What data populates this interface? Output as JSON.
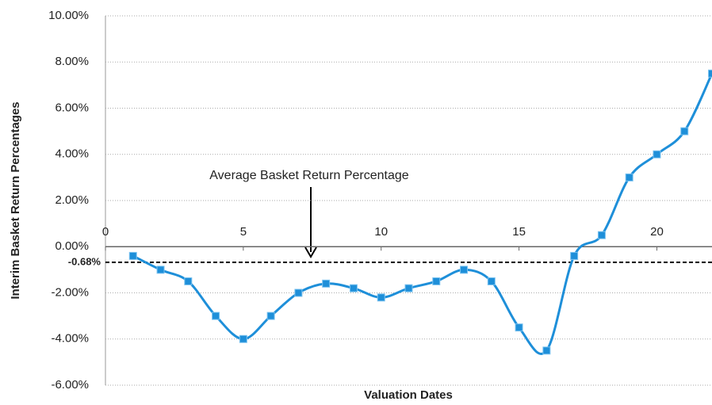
{
  "chart_data": {
    "type": "line",
    "x_label": "Valuation Dates",
    "y_label": "Interim Basket Return Percentages",
    "x": [
      1,
      2,
      3,
      4,
      5,
      6,
      7,
      8,
      9,
      10,
      11,
      12,
      13,
      14,
      15,
      16,
      17,
      18,
      19,
      20,
      21,
      22
    ],
    "series": [
      {
        "color": "#1e8fd9",
        "values": [
          -0.4,
          -1,
          -1.5,
          -3,
          -4,
          -3,
          -2,
          -1.6,
          -1.8,
          -2.2,
          -1.8,
          -1.5,
          -1,
          -1.5,
          -3.5,
          -4.5,
          -0.4,
          0.5,
          3,
          4,
          5,
          7.5
        ]
      }
    ],
    "xlim": [
      0,
      22
    ],
    "xticks": [
      0,
      5,
      10,
      15,
      20
    ],
    "ylim": [
      -6,
      10
    ],
    "yticks": [
      {
        "value": -6,
        "label": "-6.00%"
      },
      {
        "value": -4,
        "label": "-4.00%"
      },
      {
        "value": -2,
        "label": "-2.00%"
      },
      {
        "value": 0,
        "label": "0.00%"
      },
      {
        "value": 2,
        "label": "2.00%"
      },
      {
        "value": 4,
        "label": "4.00%"
      },
      {
        "value": 6,
        "label": "6.00%"
      },
      {
        "value": 8,
        "label": "8.00%"
      },
      {
        "value": 10,
        "label": "10.00%"
      }
    ],
    "grid": true,
    "reference_line": {
      "value": -0.68,
      "label": "-0.68%"
    },
    "annotation": "Average Basket Return Percentage"
  }
}
